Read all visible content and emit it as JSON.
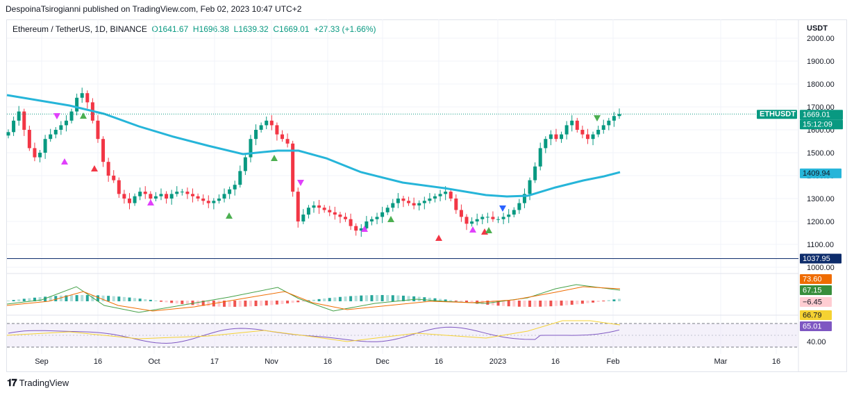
{
  "header": {
    "published": "DespoinaTsirogianni published on TradingView.com, Feb 02, 2023 10:47 UTC+2"
  },
  "symbol": {
    "name": "Ethereum / TetherUS, 1D, BINANCE",
    "open": "O1641.67",
    "high": "H1696.38",
    "low": "L1639.32",
    "close": "C1669.01",
    "change": "+27.33 (+1.66%)"
  },
  "axis": {
    "currency": "USDT"
  },
  "badges": {
    "symbol": "ETHUSDT",
    "price": "1669.01",
    "countdown": "15:12:09",
    "ma": "1409.94",
    "level": "1037.95",
    "macd1": "73.60",
    "macd2": "67.15",
    "macd3": "−6.45",
    "rsi1": "66.79",
    "rsi2": "65.01",
    "rsi_tick": "40.00"
  },
  "footer": {
    "brand": "TradingView"
  },
  "colors": {
    "up": "#089981",
    "down": "#f23645",
    "ma": "#26b5d9",
    "rsi": "#7e57c2",
    "rsi_ma": "#f5d232",
    "macd_line": "#43a047",
    "signal_line": "#ef6c00",
    "level": "#0d2c6b"
  },
  "chart_data": {
    "type": "candlestick",
    "y_ticks": [
      "2000.00",
      "1900.00",
      "1800.00",
      "1700.00",
      "1600.00",
      "1500.00",
      "1400.00",
      "1300.00",
      "1200.00",
      "1100.00",
      "1000.00"
    ],
    "x_ticks": [
      "Sep",
      "16",
      "Oct",
      "17",
      "Nov",
      "16",
      "Dec",
      "16",
      "2023",
      "16",
      "Feb",
      "Mar",
      "16"
    ],
    "ylim": [
      1000,
      2000
    ],
    "close_series": [
      1590,
      1640,
      1680,
      1600,
      1520,
      1480,
      1500,
      1560,
      1580,
      1600,
      1620,
      1640,
      1680,
      1740,
      1760,
      1720,
      1640,
      1560,
      1460,
      1400,
      1380,
      1320,
      1300,
      1280,
      1310,
      1330,
      1320,
      1300,
      1310,
      1320,
      1300,
      1320,
      1330,
      1330,
      1320,
      1310,
      1300,
      1290,
      1280,
      1290,
      1300,
      1320,
      1340,
      1360,
      1420,
      1480,
      1560,
      1600,
      1620,
      1640,
      1620,
      1580,
      1560,
      1540,
      1330,
      1200,
      1230,
      1260,
      1270,
      1260,
      1250,
      1240,
      1230,
      1220,
      1210,
      1180,
      1160,
      1170,
      1200,
      1210,
      1220,
      1240,
      1260,
      1280,
      1300,
      1290,
      1280,
      1270,
      1280,
      1290,
      1300,
      1310,
      1320,
      1330,
      1300,
      1250,
      1220,
      1190,
      1200,
      1210,
      1220,
      1220,
      1210,
      1210,
      1220,
      1230,
      1250,
      1280,
      1320,
      1380,
      1440,
      1520,
      1560,
      1580,
      1560,
      1580,
      1620,
      1640,
      1600,
      1580,
      1560,
      1580,
      1600,
      1620,
      1640,
      1660,
      1669
    ],
    "ma_series_end": 1409.94,
    "level_line": 1037.95,
    "macd_values": {
      "macd": 73.6,
      "signal": 67.15,
      "histogram": -6.45
    },
    "rsi_values": {
      "rsi": 65.01,
      "rsi_ma": 66.79
    }
  }
}
